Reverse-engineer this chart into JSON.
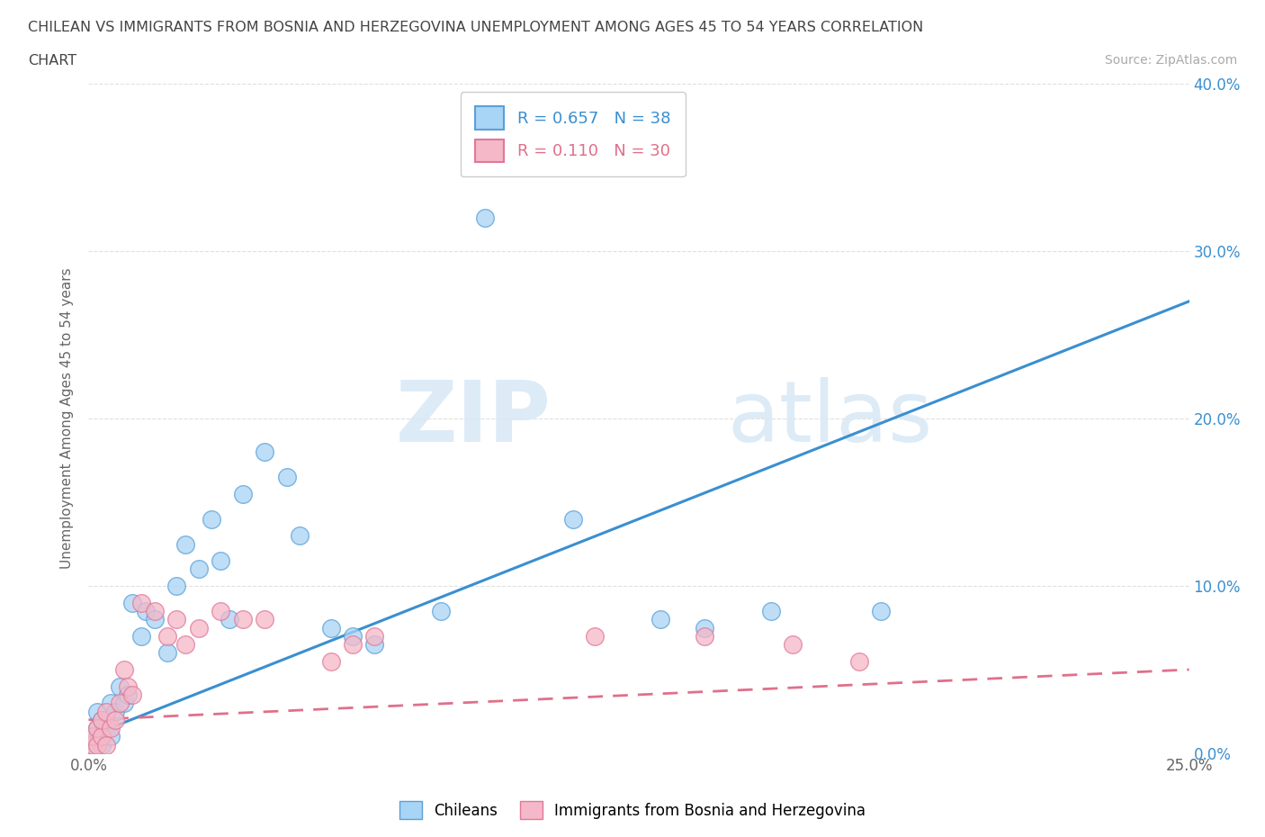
{
  "title_line1": "CHILEAN VS IMMIGRANTS FROM BOSNIA AND HERZEGOVINA UNEMPLOYMENT AMONG AGES 45 TO 54 YEARS CORRELATION",
  "title_line2": "CHART",
  "source": "Source: ZipAtlas.com",
  "ylabel": "Unemployment Among Ages 45 to 54 years",
  "xlim": [
    0.0,
    0.25
  ],
  "ylim": [
    0.0,
    0.4
  ],
  "xticks": [
    0.0,
    0.05,
    0.1,
    0.15,
    0.2,
    0.25
  ],
  "yticks": [
    0.0,
    0.1,
    0.2,
    0.3,
    0.4
  ],
  "ytick_labels_right": [
    "0.0%",
    "10.0%",
    "20.0%",
    "30.0%",
    "40.0%"
  ],
  "chilean_color": "#a8d4f5",
  "immigrant_color": "#f5b8c8",
  "chilean_edge_color": "#5aa0d8",
  "immigrant_edge_color": "#e07898",
  "chilean_line_color": "#3a8fd0",
  "immigrant_line_color": "#e0708a",
  "R_chilean": 0.657,
  "N_chilean": 38,
  "R_immigrant": 0.11,
  "N_immigrant": 30,
  "legend_label_chilean": "Chileans",
  "legend_label_immigrant": "Immigrants from Bosnia and Herzegovina",
  "chileans_x": [
    0.001,
    0.001,
    0.002,
    0.002,
    0.003,
    0.003,
    0.004,
    0.005,
    0.005,
    0.006,
    0.007,
    0.008,
    0.009,
    0.01,
    0.012,
    0.013,
    0.015,
    0.018,
    0.02,
    0.022,
    0.025,
    0.028,
    0.03,
    0.032,
    0.035,
    0.04,
    0.045,
    0.048,
    0.055,
    0.06,
    0.065,
    0.08,
    0.09,
    0.11,
    0.13,
    0.14,
    0.155,
    0.18
  ],
  "chileans_y": [
    0.005,
    0.01,
    0.015,
    0.025,
    0.005,
    0.02,
    0.015,
    0.01,
    0.03,
    0.025,
    0.04,
    0.03,
    0.035,
    0.09,
    0.07,
    0.085,
    0.08,
    0.06,
    0.1,
    0.125,
    0.11,
    0.14,
    0.115,
    0.08,
    0.155,
    0.18,
    0.165,
    0.13,
    0.075,
    0.07,
    0.065,
    0.085,
    0.32,
    0.14,
    0.08,
    0.075,
    0.085,
    0.085
  ],
  "immigrants_x": [
    0.001,
    0.001,
    0.002,
    0.002,
    0.003,
    0.003,
    0.004,
    0.004,
    0.005,
    0.006,
    0.007,
    0.008,
    0.009,
    0.01,
    0.012,
    0.015,
    0.018,
    0.02,
    0.022,
    0.025,
    0.03,
    0.035,
    0.04,
    0.055,
    0.06,
    0.065,
    0.115,
    0.14,
    0.16,
    0.175
  ],
  "immigrants_y": [
    0.005,
    0.01,
    0.005,
    0.015,
    0.01,
    0.02,
    0.005,
    0.025,
    0.015,
    0.02,
    0.03,
    0.05,
    0.04,
    0.035,
    0.09,
    0.085,
    0.07,
    0.08,
    0.065,
    0.075,
    0.085,
    0.08,
    0.08,
    0.055,
    0.065,
    0.07,
    0.07,
    0.07,
    0.065,
    0.055
  ],
  "watermark_zip": "ZIP",
  "watermark_atlas": "atlas",
  "background_color": "#ffffff",
  "grid_color": "#e0e0e0"
}
